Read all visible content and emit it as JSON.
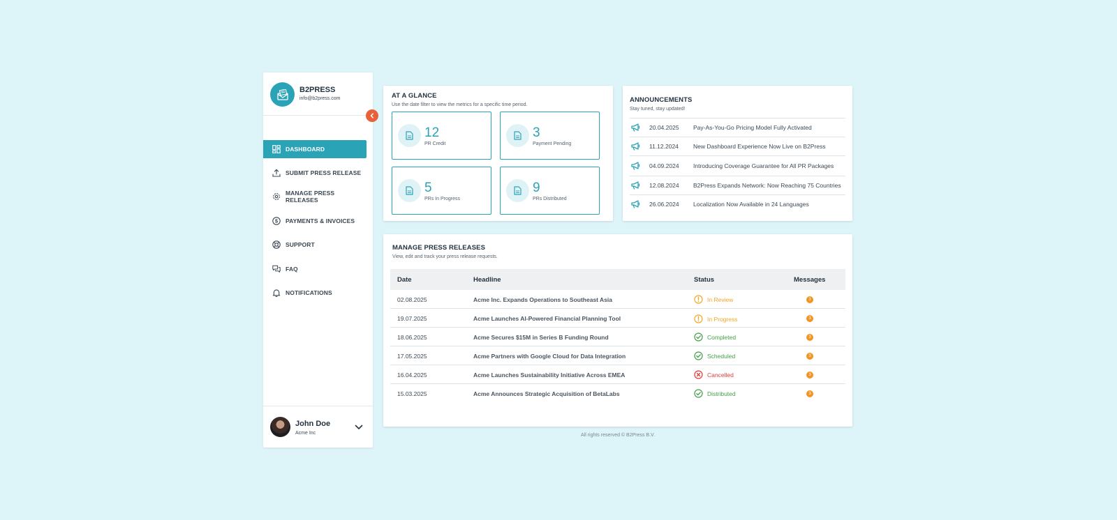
{
  "brand": {
    "name": "B2PRESS",
    "email": "info@b2press.com"
  },
  "sidebar": {
    "items": [
      {
        "label": "DASHBOARD",
        "icon": "dashboard-icon",
        "active": true
      },
      {
        "label": "SUBMIT PRESS RELEASE",
        "icon": "upload-icon",
        "active": false
      },
      {
        "label": "MANAGE PRESS RELEASES",
        "icon": "gear-icon",
        "active": false
      },
      {
        "label": "PAYMENTS & INVOICES",
        "icon": "dollar-icon",
        "active": false
      },
      {
        "label": "SUPPORT",
        "icon": "lifebuoy-icon",
        "active": false
      },
      {
        "label": "FAQ",
        "icon": "chat-icon",
        "active": false
      },
      {
        "label": "NOTIFICATIONS",
        "icon": "bell-icon",
        "active": false
      }
    ]
  },
  "user": {
    "name": "John Doe",
    "company": "Acme Inc"
  },
  "glance": {
    "title": "AT A GLANCE",
    "subtitle": "Use the date filter to view the metrics for a specific time period.",
    "metrics": [
      {
        "value": "12",
        "label": "PR Credit"
      },
      {
        "value": "3",
        "label": "Payment Pending"
      },
      {
        "value": "5",
        "label": "PRs In Progress"
      },
      {
        "value": "9",
        "label": "PRs Distributed"
      }
    ]
  },
  "announcements": {
    "title": "ANNOUNCEMENTS",
    "subtitle": "Stay tuned, stay updated!",
    "items": [
      {
        "date": "20.04.2025",
        "text": "Pay-As-You-Go Pricing Model Fully Activated"
      },
      {
        "date": "11.12.2024",
        "text": "New Dashboard Experience Now Live on B2Press"
      },
      {
        "date": "04.09.2024",
        "text": "Introducing Coverage Guarantee for All PR Packages"
      },
      {
        "date": "12.08.2024",
        "text": "B2Press Expands Network: Now Reaching 75 Countries"
      },
      {
        "date": "26.06.2024",
        "text": "Localization Now Available in 24 Languages"
      }
    ]
  },
  "manage": {
    "title": "MANAGE PRESS RELEASES",
    "subtitle": "View, edit and track your press release requests.",
    "columns": {
      "date": "Date",
      "headline": "Headline",
      "status": "Status",
      "messages": "Messages"
    },
    "rows": [
      {
        "date": "02.08.2025",
        "headline": "Acme Inc. Expands Operations to Southeast Asia",
        "status": "In Review",
        "status_kind": "warning",
        "messages": "3"
      },
      {
        "date": "19.07.2025",
        "headline": "Acme Launches AI-Powered Financial Planning Tool",
        "status": "In Progress",
        "status_kind": "warning",
        "messages": "3"
      },
      {
        "date": "18.06.2025",
        "headline": "Acme Secures $15M in Series B Funding Round",
        "status": "Completed",
        "status_kind": "success",
        "messages": "3"
      },
      {
        "date": "17.05.2025",
        "headline": "Acme Partners with Google Cloud for Data Integration",
        "status": "Scheduled",
        "status_kind": "success",
        "messages": "3"
      },
      {
        "date": "16.04.2025",
        "headline": "Acme Launches Sustainability Initiative Across EMEA",
        "status": "Cancelled",
        "status_kind": "error",
        "messages": "3"
      },
      {
        "date": "15.03.2025",
        "headline": "Acme Announces Strategic Acquisition of BetaLabs",
        "status": "Distributed",
        "status_kind": "success",
        "messages": "3"
      }
    ]
  },
  "footer": {
    "text": "All rights reserved © B2Press B.V."
  },
  "colors": {
    "accent": "#2aa3b6",
    "background": "#ddf4f9",
    "warning": "#f5a623",
    "success": "#43a047",
    "error": "#e53935",
    "collapse": "#e8613a",
    "badge": "#f29422"
  }
}
